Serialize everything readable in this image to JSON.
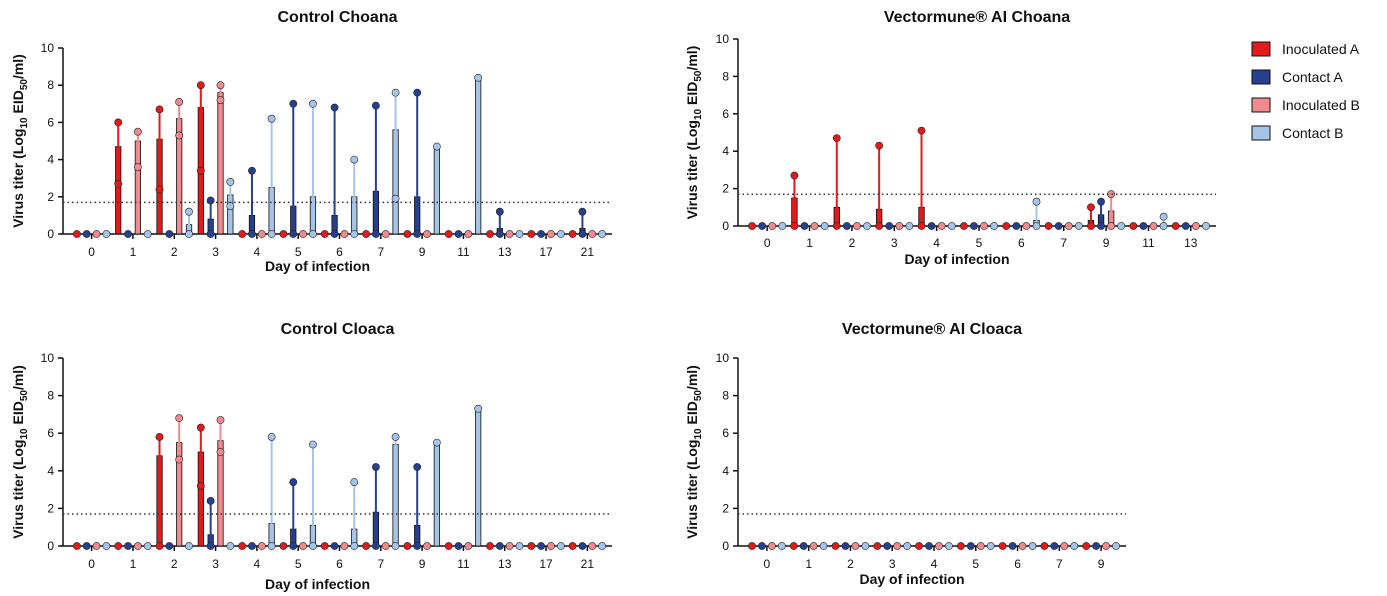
{
  "colors": {
    "inoculated_a": "#e31a1c",
    "contact_a": "#263f8f",
    "inoculated_b": "#f08a8e",
    "contact_b": "#a6c4e8",
    "axis": "#111111",
    "threshold_line": "#333333"
  },
  "legend": {
    "placement": "top-right",
    "entries": [
      "Inoculated A",
      "Contact A",
      "Inoculated B",
      "Contact B"
    ]
  },
  "y_label_main": "Virus titer (Log",
  "y_label_sub": "10",
  "y_label_mid": " EID",
  "y_label_sub2": "50",
  "y_label_end": "/ml)",
  "chart_data": [
    {
      "type": "bar",
      "title": "Control Choana",
      "xlabel": "Day of infection",
      "ylim": [
        0,
        10
      ],
      "yticks": [
        0,
        2,
        4,
        6,
        8,
        10
      ],
      "threshold": 1.7,
      "categories": [
        "0",
        "1",
        "2",
        "3",
        "4",
        "5",
        "6",
        "7",
        "9",
        "11",
        "13",
        "17",
        "21"
      ],
      "series": [
        {
          "name": "Inoculated A",
          "values": [
            0,
            4.7,
            5.1,
            6.8,
            0,
            0,
            0,
            0,
            0,
            0,
            0,
            0,
            0
          ],
          "max": [
            0,
            6.0,
            6.7,
            8.0,
            0,
            0,
            0,
            0,
            0,
            0,
            0,
            0,
            0
          ],
          "min": [
            0,
            2.7,
            2.4,
            3.4,
            0,
            0,
            0,
            0,
            0,
            0,
            0,
            0,
            0
          ]
        },
        {
          "name": "Contact A",
          "values": [
            0,
            0,
            0,
            0.8,
            1.0,
            1.5,
            1.0,
            2.3,
            2.0,
            0,
            0.3,
            0,
            0.3
          ],
          "max": [
            0,
            0,
            0,
            1.8,
            3.4,
            7.0,
            6.8,
            6.9,
            7.6,
            0,
            1.2,
            0,
            1.2
          ],
          "min": [
            0,
            0,
            0,
            0,
            0,
            0,
            0,
            0,
            0,
            0,
            0,
            0,
            0
          ]
        },
        {
          "name": "Inoculated B",
          "values": [
            0,
            5.0,
            6.2,
            7.6,
            0,
            0,
            0,
            0,
            0,
            0,
            0,
            0,
            0
          ],
          "max": [
            0,
            5.5,
            7.1,
            8.0,
            0,
            0,
            0,
            0,
            0,
            0,
            0,
            0,
            0
          ],
          "min": [
            0,
            3.6,
            5.3,
            7.2,
            0,
            0,
            0,
            0,
            0,
            0,
            0,
            0,
            0
          ]
        },
        {
          "name": "Contact B",
          "values": [
            0,
            0,
            0.5,
            2.1,
            2.5,
            2.0,
            2.0,
            5.6,
            4.7,
            8.4,
            0,
            0,
            0
          ],
          "max": [
            0,
            0,
            1.2,
            2.8,
            6.2,
            7.0,
            4.0,
            7.6,
            4.7,
            8.4,
            0,
            0,
            0
          ],
          "min": [
            0,
            0,
            0,
            1.5,
            0,
            0,
            0,
            1.9,
            4.7,
            8.4,
            0,
            0,
            0
          ]
        }
      ]
    },
    {
      "type": "bar",
      "title": "Vectormune® AI Choana",
      "xlabel": "Day of infection",
      "ylim": [
        0,
        10
      ],
      "yticks": [
        0,
        2,
        4,
        6,
        8,
        10
      ],
      "threshold": 1.7,
      "categories": [
        "0",
        "1",
        "2",
        "3",
        "4",
        "5",
        "6",
        "7",
        "9",
        "11",
        "13"
      ],
      "series": [
        {
          "name": "Inoculated A",
          "values": [
            0,
            1.5,
            1.0,
            0.9,
            1.0,
            0,
            0,
            0,
            0.3,
            0,
            0
          ],
          "max": [
            0,
            2.7,
            4.7,
            4.3,
            5.1,
            0,
            0,
            0,
            1.0,
            0,
            0
          ],
          "min": [
            0,
            0,
            0,
            0,
            0,
            0,
            0,
            0,
            0,
            0,
            0
          ]
        },
        {
          "name": "Contact A",
          "values": [
            0,
            0,
            0,
            0,
            0,
            0,
            0,
            0,
            0.6,
            0,
            0
          ],
          "max": [
            0,
            0,
            0,
            0,
            0,
            0,
            0,
            0,
            1.3,
            0,
            0
          ],
          "min": [
            0,
            0,
            0,
            0,
            0,
            0,
            0,
            0,
            0,
            0,
            0
          ]
        },
        {
          "name": "Inoculated B",
          "values": [
            0,
            0,
            0,
            0,
            0,
            0,
            0,
            0,
            0.8,
            0,
            0
          ],
          "max": [
            0,
            0,
            0,
            0,
            0,
            0,
            0,
            0,
            1.7,
            0,
            0
          ],
          "min": [
            0,
            0,
            0,
            0,
            0,
            0,
            0,
            0,
            0,
            0,
            0
          ]
        },
        {
          "name": "Contact B",
          "values": [
            0,
            0,
            0,
            0,
            0,
            0,
            0.3,
            0,
            0,
            0.1,
            0
          ],
          "max": [
            0,
            0,
            0,
            0,
            0,
            0,
            1.3,
            0,
            0,
            0.5,
            0
          ],
          "min": [
            0,
            0,
            0,
            0,
            0,
            0,
            0,
            0,
            0,
            0,
            0
          ]
        }
      ]
    },
    {
      "type": "bar",
      "title": "Control Cloaca",
      "xlabel": "Day of infection",
      "ylim": [
        0,
        10
      ],
      "yticks": [
        0,
        2,
        4,
        6,
        8,
        10
      ],
      "threshold": 1.7,
      "categories": [
        "0",
        "1",
        "2",
        "3",
        "4",
        "5",
        "6",
        "7",
        "9",
        "11",
        "13",
        "17",
        "21"
      ],
      "series": [
        {
          "name": "Inoculated A",
          "values": [
            0,
            0,
            4.8,
            5.0,
            0,
            0,
            0,
            0,
            0,
            0,
            0,
            0,
            0
          ],
          "max": [
            0,
            0,
            5.8,
            6.3,
            0,
            0,
            0,
            0,
            0,
            0,
            0,
            0,
            0
          ],
          "min": [
            0,
            0,
            0,
            3.2,
            0,
            0,
            0,
            0,
            0,
            0,
            0,
            0,
            0
          ]
        },
        {
          "name": "Contact A",
          "values": [
            0,
            0,
            0,
            0.6,
            0,
            0.9,
            0,
            1.8,
            1.1,
            0,
            0,
            0,
            0
          ],
          "max": [
            0,
            0,
            0,
            2.4,
            0,
            3.4,
            0,
            4.2,
            4.2,
            0,
            0,
            0,
            0
          ],
          "min": [
            0,
            0,
            0,
            0,
            0,
            0,
            0,
            0,
            0,
            0,
            0,
            0,
            0
          ]
        },
        {
          "name": "Inoculated B",
          "values": [
            0,
            0,
            5.5,
            5.6,
            0,
            0,
            0,
            0,
            0,
            0,
            0,
            0,
            0
          ],
          "max": [
            0,
            0,
            6.8,
            6.7,
            0,
            0,
            0,
            0,
            0,
            0,
            0,
            0,
            0
          ],
          "min": [
            0,
            0,
            4.6,
            5.0,
            0,
            0,
            0,
            0,
            0,
            0,
            0,
            0,
            0
          ]
        },
        {
          "name": "Contact B",
          "values": [
            0,
            0,
            0,
            0,
            1.2,
            1.1,
            0.9,
            5.4,
            5.5,
            7.3,
            0,
            0,
            0
          ],
          "max": [
            0,
            0,
            0,
            0,
            5.8,
            5.4,
            3.4,
            5.8,
            5.5,
            7.3,
            0,
            0,
            0
          ],
          "min": [
            0,
            0,
            0,
            0,
            0,
            0,
            0,
            0,
            5.5,
            7.3,
            0,
            0,
            0
          ]
        }
      ]
    },
    {
      "type": "bar",
      "title": "Vectormune® AI Cloaca",
      "xlabel": "Day of infection",
      "ylim": [
        0,
        10
      ],
      "yticks": [
        0,
        2,
        4,
        6,
        8,
        10
      ],
      "threshold": 1.7,
      "categories": [
        "0",
        "1",
        "2",
        "3",
        "4",
        "5",
        "6",
        "7",
        "9"
      ],
      "series": [
        {
          "name": "Inoculated A",
          "values": [
            0,
            0,
            0,
            0,
            0,
            0,
            0,
            0,
            0
          ],
          "max": [
            0,
            0,
            0,
            0,
            0,
            0,
            0,
            0,
            0
          ],
          "min": [
            0,
            0,
            0,
            0,
            0,
            0,
            0,
            0,
            0
          ]
        },
        {
          "name": "Contact A",
          "values": [
            0,
            0,
            0,
            0,
            0,
            0,
            0,
            0,
            0
          ],
          "max": [
            0,
            0,
            0,
            0,
            0,
            0,
            0,
            0,
            0
          ],
          "min": [
            0,
            0,
            0,
            0,
            0,
            0,
            0,
            0,
            0
          ]
        },
        {
          "name": "Inoculated B",
          "values": [
            0,
            0,
            0,
            0,
            0,
            0,
            0,
            0,
            0
          ],
          "max": [
            0,
            0,
            0,
            0,
            0,
            0,
            0,
            0,
            0
          ],
          "min": [
            0,
            0,
            0,
            0,
            0,
            0,
            0,
            0,
            0
          ]
        },
        {
          "name": "Contact B",
          "values": [
            0,
            0,
            0,
            0,
            0,
            0,
            0,
            0,
            0
          ],
          "max": [
            0,
            0,
            0,
            0,
            0,
            0,
            0,
            0,
            0
          ],
          "min": [
            0,
            0,
            0,
            0,
            0,
            0,
            0,
            0,
            0
          ]
        }
      ]
    }
  ]
}
